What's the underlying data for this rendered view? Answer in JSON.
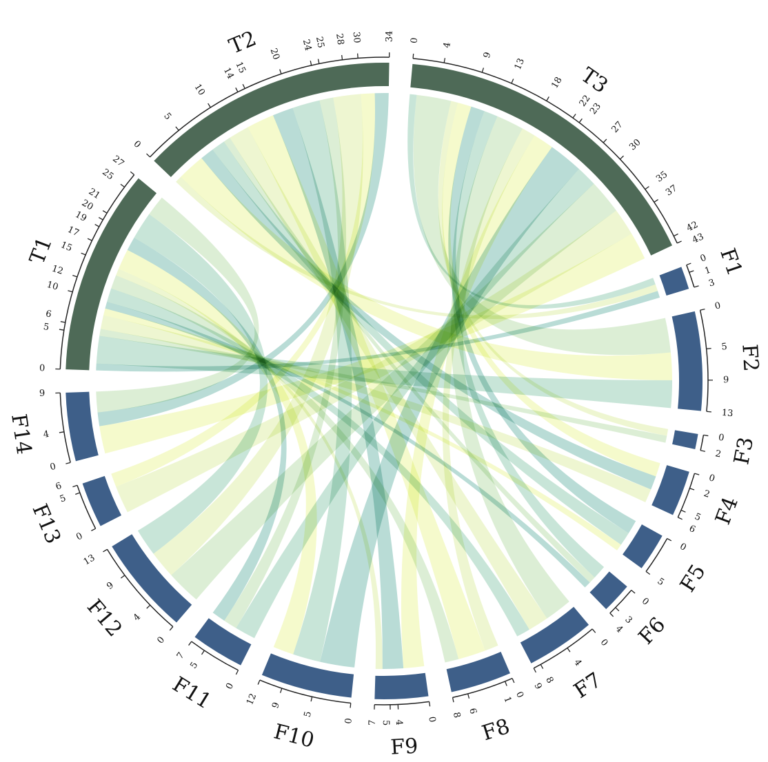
{
  "chart_data": {
    "type": "chord",
    "colors": {
      "target_segment": "#4e6a57",
      "feature_segment": "#3e5f89",
      "ribbon_palette": [
        "#9ecfc6",
        "#b3dbc9",
        "#cfe8c5",
        "#e7f3bf",
        "#f1f8b8"
      ]
    },
    "segments": [
      {
        "name": "T1",
        "group": "target",
        "total": 27,
        "ticks": [
          0,
          5,
          6,
          10,
          12,
          15,
          17,
          19,
          20,
          21,
          25,
          27
        ]
      },
      {
        "name": "T2",
        "group": "target",
        "total": 34,
        "ticks": [
          0,
          5,
          10,
          14,
          15,
          20,
          24,
          25,
          28,
          30,
          34
        ]
      },
      {
        "name": "T3",
        "group": "target",
        "total": 43,
        "ticks": [
          0,
          4,
          9,
          13,
          18,
          22,
          23,
          27,
          30,
          35,
          37,
          42,
          43
        ]
      },
      {
        "name": "F1",
        "group": "feature",
        "total": 3,
        "ticks": [
          0,
          1,
          3
        ]
      },
      {
        "name": "F2",
        "group": "feature",
        "total": 13,
        "ticks": [
          0,
          5,
          9,
          13
        ]
      },
      {
        "name": "F3",
        "group": "feature",
        "total": 2,
        "ticks": [
          0,
          2
        ]
      },
      {
        "name": "F4",
        "group": "feature",
        "total": 6,
        "ticks": [
          0,
          2,
          5,
          6
        ]
      },
      {
        "name": "F5",
        "group": "feature",
        "total": 5,
        "ticks": [
          0,
          5
        ]
      },
      {
        "name": "F6",
        "group": "feature",
        "total": 4,
        "ticks": [
          0,
          3,
          4
        ]
      },
      {
        "name": "F7",
        "group": "feature",
        "total": 9,
        "ticks": [
          0,
          4,
          8,
          9
        ]
      },
      {
        "name": "F8",
        "group": "feature",
        "total": 8,
        "ticks": [
          0,
          1,
          6,
          8
        ]
      },
      {
        "name": "F9",
        "group": "feature",
        "total": 7,
        "ticks": [
          0,
          4,
          5,
          7
        ]
      },
      {
        "name": "F10",
        "group": "feature",
        "total": 12,
        "ticks": [
          0,
          5,
          9,
          12
        ]
      },
      {
        "name": "F11",
        "group": "feature",
        "total": 7,
        "ticks": [
          0,
          5,
          7
        ]
      },
      {
        "name": "F12",
        "group": "feature",
        "total": 13,
        "ticks": [
          0,
          4,
          9,
          13
        ]
      },
      {
        "name": "F13",
        "group": "feature",
        "total": 6,
        "ticks": [
          0,
          5,
          6
        ]
      },
      {
        "name": "F14",
        "group": "feature",
        "total": 9,
        "ticks": [
          0,
          4,
          9
        ]
      }
    ],
    "flows": [
      {
        "source": "T1",
        "target": "F1",
        "value": 1
      },
      {
        "source": "T1",
        "target": "F2",
        "value": 4
      },
      {
        "source": "T1",
        "target": "F3",
        "value": 1
      },
      {
        "source": "T1",
        "target": "F4",
        "value": 2
      },
      {
        "source": "T1",
        "target": "F5",
        "value": 1
      },
      {
        "source": "T1",
        "target": "F6",
        "value": 1
      },
      {
        "source": "T1",
        "target": "F7",
        "value": 2
      },
      {
        "source": "T1",
        "target": "F8",
        "value": 2
      },
      {
        "source": "T1",
        "target": "F9",
        "value": 1
      },
      {
        "source": "T1",
        "target": "F10",
        "value": 3
      },
      {
        "source": "T1",
        "target": "F11",
        "value": 2
      },
      {
        "source": "T1",
        "target": "F12",
        "value": 4
      },
      {
        "source": "T1",
        "target": "F14",
        "value": 3
      },
      {
        "source": "T2",
        "target": "F1",
        "value": 1
      },
      {
        "source": "T2",
        "target": "F2",
        "value": 4
      },
      {
        "source": "T2",
        "target": "F4",
        "value": 2
      },
      {
        "source": "T2",
        "target": "F5",
        "value": 2
      },
      {
        "source": "T2",
        "target": "F6",
        "value": 1
      },
      {
        "source": "T2",
        "target": "F7",
        "value": 3
      },
      {
        "source": "T2",
        "target": "F8",
        "value": 4
      },
      {
        "source": "T2",
        "target": "F9",
        "value": 3
      },
      {
        "source": "T2",
        "target": "F10",
        "value": 4
      },
      {
        "source": "T2",
        "target": "F11",
        "value": 2
      },
      {
        "source": "T2",
        "target": "F12",
        "value": 4
      },
      {
        "source": "T2",
        "target": "F13",
        "value": 2
      },
      {
        "source": "T2",
        "target": "F14",
        "value": 2
      },
      {
        "source": "T3",
        "target": "F1",
        "value": 1
      },
      {
        "source": "T3",
        "target": "F2",
        "value": 5
      },
      {
        "source": "T3",
        "target": "F3",
        "value": 1
      },
      {
        "source": "T3",
        "target": "F4",
        "value": 2
      },
      {
        "source": "T3",
        "target": "F5",
        "value": 2
      },
      {
        "source": "T3",
        "target": "F6",
        "value": 2
      },
      {
        "source": "T3",
        "target": "F7",
        "value": 4
      },
      {
        "source": "T3",
        "target": "F8",
        "value": 2
      },
      {
        "source": "T3",
        "target": "F9",
        "value": 3
      },
      {
        "source": "T3",
        "target": "F10",
        "value": 5
      },
      {
        "source": "T3",
        "target": "F11",
        "value": 3
      },
      {
        "source": "T3",
        "target": "F12",
        "value": 5
      },
      {
        "source": "T3",
        "target": "F13",
        "value": 4
      },
      {
        "source": "T3",
        "target": "F14",
        "value": 4
      }
    ]
  }
}
